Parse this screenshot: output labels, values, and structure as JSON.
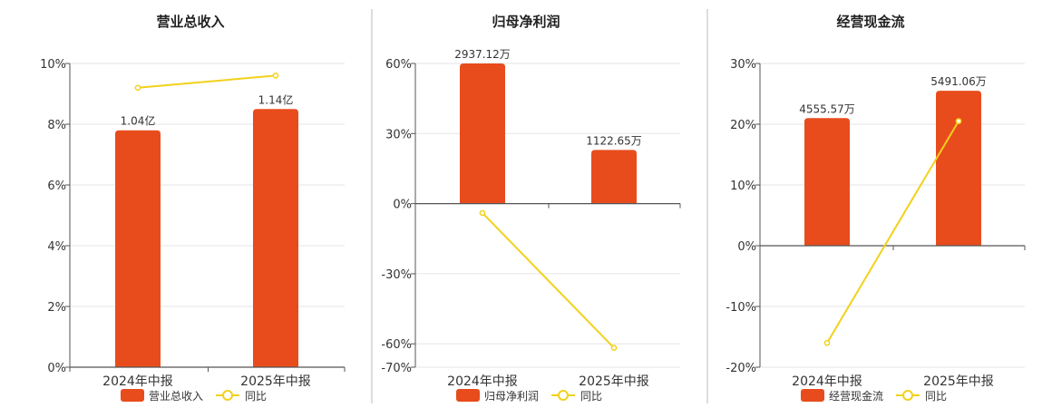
{
  "colors": {
    "bar": "#e84c1c",
    "line": "#f2d11b",
    "axis": "#555555",
    "grid": "#e6e6e6",
    "divider": "#bbbbbb",
    "text": "#333333"
  },
  "legend": {
    "line_label": "同比"
  },
  "chart_data": [
    {
      "type": "bar",
      "title": "营业总收入",
      "categories": [
        "2024年中报",
        "2025年中报"
      ],
      "series": [
        {
          "name": "营业总收入",
          "type": "bar",
          "labels": [
            "1.04亿",
            "1.14亿"
          ]
        },
        {
          "name": "同比",
          "type": "line",
          "values": [
            9.2,
            9.6
          ]
        }
      ],
      "y_ticks": [
        "0%",
        "2%",
        "4%",
        "6%",
        "8%",
        "10%"
      ],
      "ylim": [
        0,
        10
      ],
      "bar_heights_on_axis": [
        7.8,
        8.5
      ]
    },
    {
      "type": "bar",
      "title": "归母净利润",
      "categories": [
        "2024年中报",
        "2025年中报"
      ],
      "series": [
        {
          "name": "归母净利润",
          "type": "bar",
          "labels": [
            "2937.12万",
            "1122.65万"
          ]
        },
        {
          "name": "同比",
          "type": "line",
          "values": [
            -4,
            -61.7
          ]
        }
      ],
      "y_ticks": [
        "-70%",
        "-60%",
        "-30%",
        "0%",
        "30%",
        "60%"
      ],
      "ylim": [
        -70,
        60
      ],
      "bar_heights_on_axis": [
        60,
        23
      ]
    },
    {
      "type": "bar",
      "title": "经营现金流",
      "categories": [
        "2024年中报",
        "2025年中报"
      ],
      "series": [
        {
          "name": "经营现金流",
          "type": "bar",
          "labels": [
            "4555.57万",
            "5491.06万"
          ]
        },
        {
          "name": "同比",
          "type": "line",
          "values": [
            -16,
            20.5
          ]
        }
      ],
      "y_ticks": [
        "-20%",
        "-10%",
        "0%",
        "10%",
        "20%",
        "30%"
      ],
      "ylim": [
        -20,
        30
      ],
      "bar_heights_on_axis": [
        21,
        25.5
      ]
    }
  ]
}
